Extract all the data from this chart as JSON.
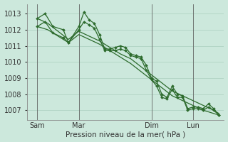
{
  "background_color": "#cce8dc",
  "grid_color": "#aacfbe",
  "line_color": "#2d6b2d",
  "marker_color": "#2d6b2d",
  "xlabel": "Pression niveau de la mer( hPa )",
  "ylim": [
    1006.4,
    1013.6
  ],
  "yticks": [
    1007,
    1008,
    1009,
    1010,
    1011,
    1012,
    1013
  ],
  "xtick_labels": [
    "Sam",
    "Mar",
    "Dim",
    "Lun"
  ],
  "xtick_positions": [
    2,
    10,
    24,
    32
  ],
  "vline_positions": [
    2,
    10,
    24,
    32
  ],
  "xlim": [
    0,
    38
  ],
  "series1_x": [
    2,
    3.5,
    5,
    7,
    8,
    10,
    11,
    12,
    13,
    14,
    15,
    16,
    17,
    18,
    19,
    20,
    21,
    22,
    23,
    24,
    25,
    26,
    27,
    28,
    29,
    30,
    31,
    32,
    33,
    34,
    35,
    36,
    37
  ],
  "series1_y": [
    1012.7,
    1013.0,
    1012.2,
    1012.0,
    1011.2,
    1012.2,
    1013.1,
    1012.6,
    1012.4,
    1011.7,
    1010.8,
    1010.8,
    1010.9,
    1011.0,
    1010.9,
    1010.5,
    1010.4,
    1010.3,
    1009.8,
    1009.0,
    1008.8,
    1008.0,
    1007.8,
    1008.5,
    1008.0,
    1007.9,
    1007.1,
    1007.2,
    1007.2,
    1007.1,
    1007.4,
    1007.1,
    1006.7
  ],
  "series2_x": [
    2,
    3.5,
    5,
    7,
    8,
    10,
    11,
    12,
    13,
    14,
    15,
    16,
    17,
    18,
    19,
    20,
    21,
    22,
    23,
    24,
    25,
    26,
    27,
    28,
    29,
    30,
    31,
    32,
    33,
    34,
    35,
    36,
    37
  ],
  "series2_y": [
    1012.2,
    1012.5,
    1011.8,
    1011.5,
    1011.2,
    1012.0,
    1012.5,
    1012.3,
    1012.1,
    1011.4,
    1010.7,
    1010.7,
    1010.7,
    1010.8,
    1010.7,
    1010.4,
    1010.3,
    1010.2,
    1009.5,
    1008.9,
    1008.5,
    1007.8,
    1007.7,
    1008.3,
    1007.8,
    1007.8,
    1007.0,
    1007.1,
    1007.1,
    1007.0,
    1007.2,
    1007.0,
    1006.7
  ],
  "series3_x": [
    2,
    4,
    6,
    8,
    10,
    12,
    14,
    16,
    18,
    20,
    22,
    24,
    26,
    28,
    30,
    32,
    34,
    36,
    37
  ],
  "series3_y": [
    1012.7,
    1012.4,
    1011.9,
    1011.4,
    1011.9,
    1011.6,
    1011.3,
    1010.9,
    1010.5,
    1010.2,
    1009.7,
    1009.2,
    1008.7,
    1008.2,
    1007.9,
    1007.6,
    1007.3,
    1007.0,
    1006.8
  ],
  "series4_x": [
    2,
    4,
    6,
    8,
    10,
    12,
    14,
    16,
    18,
    20,
    22,
    24,
    26,
    28,
    30,
    32,
    34,
    36,
    37
  ],
  "series4_y": [
    1012.2,
    1012.0,
    1011.6,
    1011.2,
    1011.7,
    1011.4,
    1011.1,
    1010.7,
    1010.3,
    1009.9,
    1009.4,
    1008.9,
    1008.4,
    1007.9,
    1007.6,
    1007.3,
    1007.0,
    1006.8,
    1006.7
  ]
}
